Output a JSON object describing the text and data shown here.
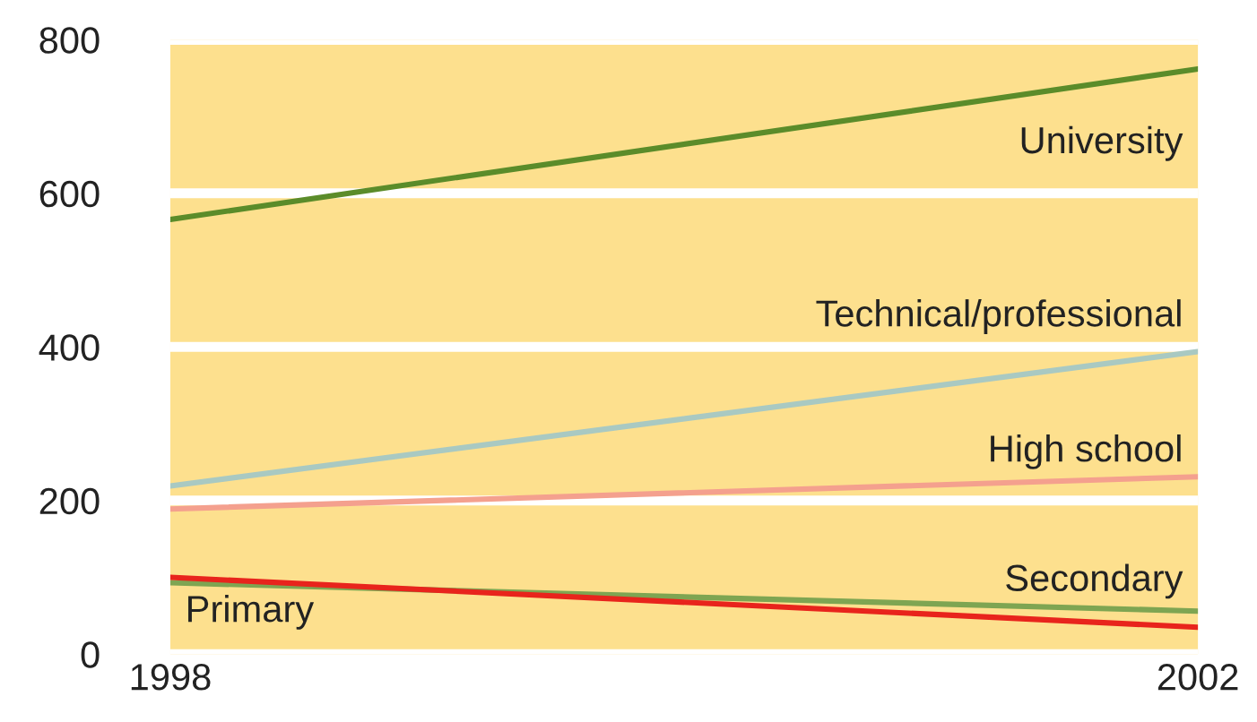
{
  "chart_data": {
    "type": "line",
    "x": [
      1998,
      2002
    ],
    "xlim": [
      1998,
      2002
    ],
    "xticks": [
      1998,
      2002
    ],
    "ylim": [
      0,
      800
    ],
    "yticks": [
      0,
      200,
      400,
      600,
      800
    ],
    "grid": "y",
    "legend": false,
    "marker": "none",
    "line_style": "solid",
    "series": [
      {
        "name": "University",
        "color": "#5b8c2a",
        "values": [
          566,
          762
        ]
      },
      {
        "name": "Technical/professional",
        "color": "#a9c9c2",
        "values": [
          219,
          394
        ]
      },
      {
        "name": "High school",
        "color": "#f4a08e",
        "values": [
          189,
          231
        ]
      },
      {
        "name": "Secondary",
        "color": "#7ea552",
        "values": [
          93,
          56
        ]
      },
      {
        "name": "Primary",
        "color": "#e8241c",
        "values": [
          100,
          35
        ]
      }
    ]
  }
}
